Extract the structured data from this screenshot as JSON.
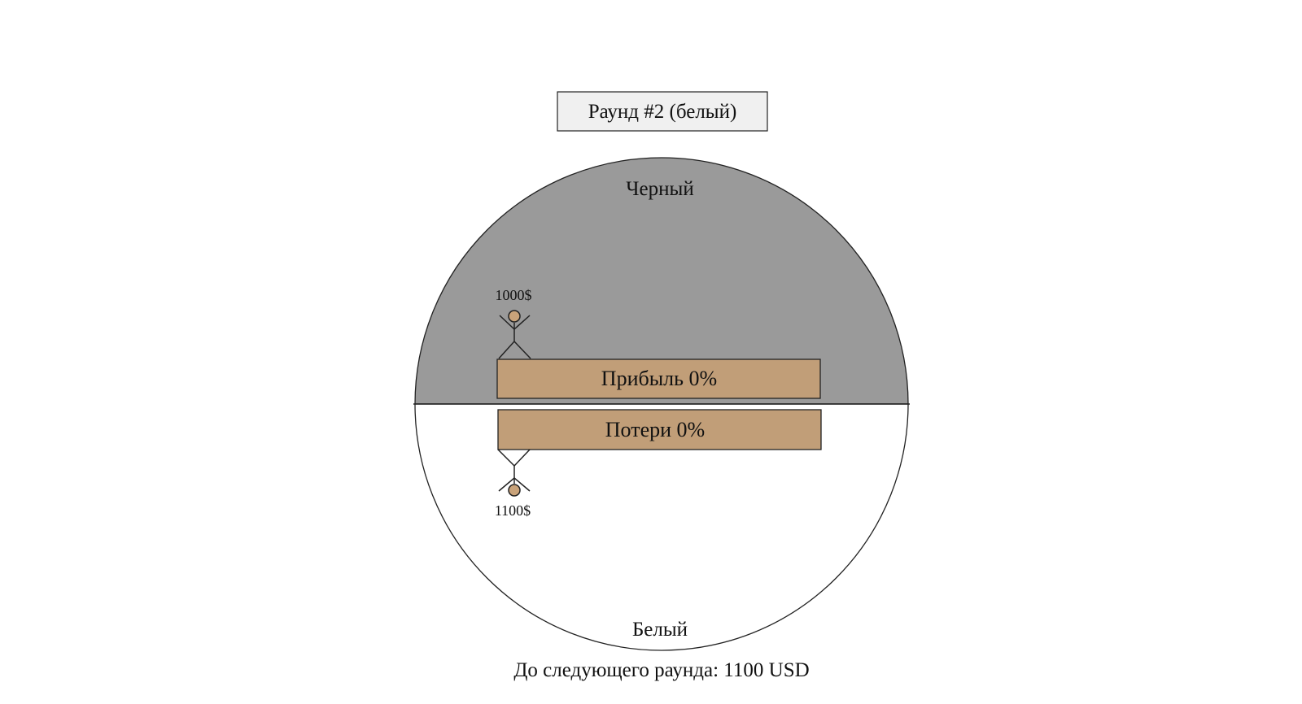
{
  "round": {
    "title": "Раунд #2 (белый)"
  },
  "zones": {
    "black_label": "Черный",
    "white_label": "Белый"
  },
  "bars": {
    "profit_label": "Прибыль 0%",
    "loss_label": "Потери 0%"
  },
  "players": {
    "top": {
      "money": "1000$"
    },
    "bottom": {
      "money": "1100$"
    }
  },
  "footer": {
    "next_round": "До следующего раунда: 1100 USD"
  },
  "colors": {
    "black_zone": "#9a9a9a",
    "white_zone": "#ffffff",
    "bar_fill": "#c19e78",
    "head_fill": "#c9a37a",
    "round_box": "#f0f0f0",
    "stroke": "#222222"
  }
}
